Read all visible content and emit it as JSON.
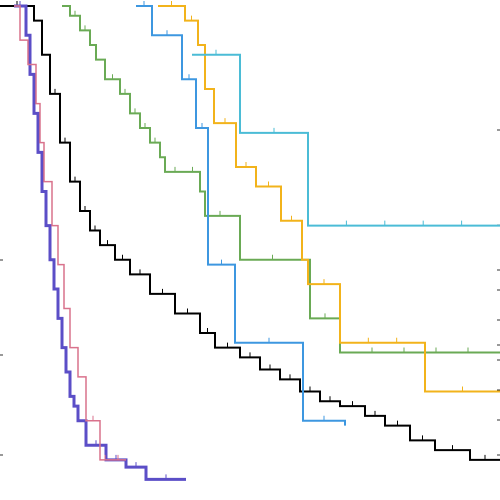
{
  "chart_data": {
    "type": "line",
    "step": true,
    "title": "",
    "xlabel": "",
    "ylabel": "",
    "xlim": [
      0,
      500
    ],
    "ylim": [
      0,
      1
    ],
    "grid": false,
    "legend": "none",
    "censor_marks": true,
    "series": [
      {
        "color": "#000000",
        "width": 2,
        "x": [
          0,
          34,
          42,
          50,
          60,
          70,
          80,
          90,
          100,
          115,
          130,
          150,
          175,
          200,
          215,
          240,
          260,
          280,
          300,
          320,
          340,
          365,
          385,
          410,
          435,
          470,
          500
        ],
        "y": [
          1.0,
          0.97,
          0.9,
          0.82,
          0.72,
          0.64,
          0.58,
          0.54,
          0.51,
          0.48,
          0.45,
          0.41,
          0.37,
          0.33,
          0.3,
          0.28,
          0.255,
          0.235,
          0.21,
          0.19,
          0.18,
          0.16,
          0.14,
          0.11,
          0.09,
          0.07,
          0.07
        ]
      },
      {
        "color": "#5b4ec7",
        "width": 3,
        "x": [
          14,
          26,
          30,
          34,
          38,
          42,
          46,
          50,
          54,
          58,
          62,
          66,
          70,
          74,
          78,
          86,
          106,
          126,
          146,
          186
        ],
        "y": [
          1.0,
          0.94,
          0.86,
          0.78,
          0.7,
          0.62,
          0.55,
          0.48,
          0.42,
          0.36,
          0.3,
          0.25,
          0.2,
          0.18,
          0.15,
          0.1,
          0.07,
          0.055,
          0.03,
          0.03
        ]
      },
      {
        "color": "#d9728c",
        "width": 1.5,
        "x": [
          14,
          20,
          28,
          36,
          40,
          44,
          52,
          58,
          64,
          70,
          78,
          86,
          100,
          110,
          126
        ],
        "y": [
          1.0,
          0.93,
          0.88,
          0.8,
          0.72,
          0.64,
          0.55,
          0.47,
          0.38,
          0.3,
          0.24,
          0.15,
          0.07,
          0.07,
          0.07
        ]
      },
      {
        "color": "#6aaa55",
        "width": 2,
        "x": [
          62,
          70,
          80,
          90,
          96,
          105,
          120,
          130,
          140,
          150,
          160,
          165,
          185,
          200,
          205,
          235,
          240,
          305,
          310,
          340,
          500
        ],
        "y": [
          1.0,
          0.98,
          0.95,
          0.92,
          0.89,
          0.85,
          0.82,
          0.78,
          0.75,
          0.72,
          0.69,
          0.66,
          0.66,
          0.62,
          0.57,
          0.57,
          0.48,
          0.48,
          0.36,
          0.29,
          0.29
        ]
      },
      {
        "color": "#3d97e0",
        "width": 2,
        "x": [
          136,
          152,
          182,
          196,
          208,
          235,
          303,
          345
        ],
        "y": [
          1.0,
          0.94,
          0.85,
          0.75,
          0.47,
          0.31,
          0.15,
          0.14
        ]
      },
      {
        "color": "#f2b31b",
        "width": 2,
        "x": [
          158,
          185,
          198,
          205,
          214,
          236,
          256,
          281,
          302,
          308,
          340,
          425,
          500
        ],
        "y": [
          1.0,
          0.97,
          0.92,
          0.83,
          0.76,
          0.67,
          0.63,
          0.56,
          0.48,
          0.43,
          0.31,
          0.21,
          0.21
        ]
      },
      {
        "color": "#4bbcd6",
        "width": 2,
        "x": [
          192,
          240,
          308,
          500
        ],
        "y": [
          0.9,
          0.74,
          0.55,
          0.55
        ]
      }
    ]
  }
}
